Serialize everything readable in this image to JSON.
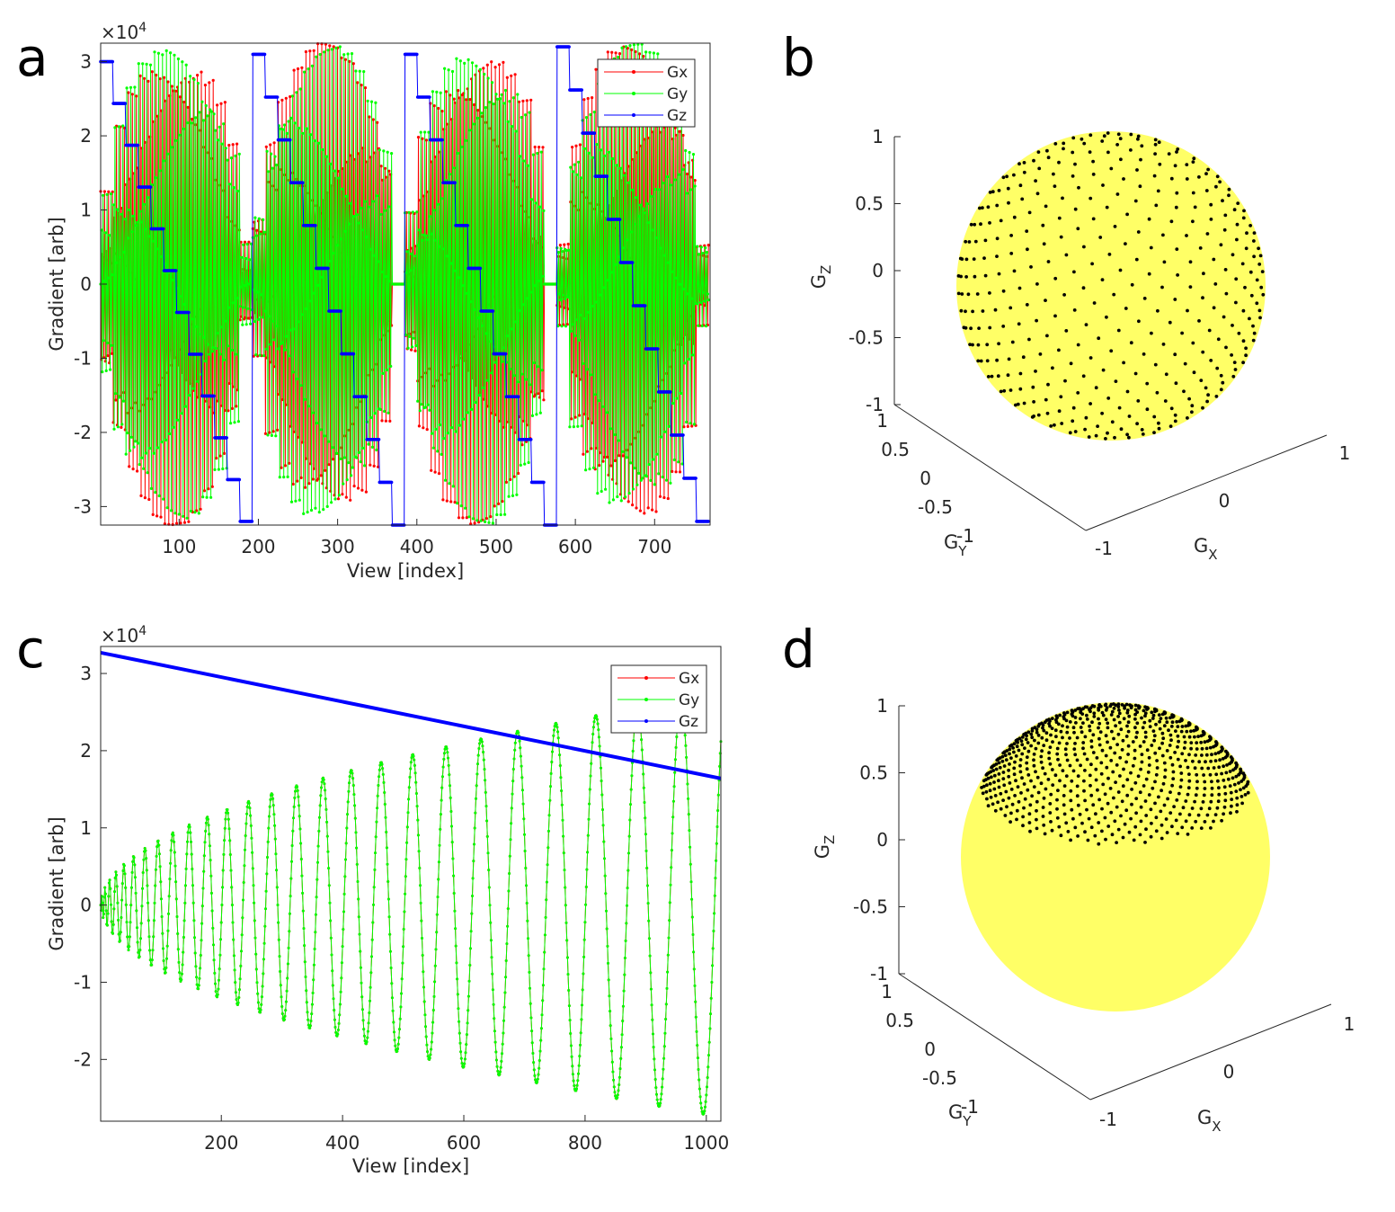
{
  "panel_letters": [
    "a",
    "b",
    "c",
    "d"
  ],
  "chart_data": [
    {
      "panel": "a",
      "type": "line",
      "xlabel": "View [index]",
      "ylabel": "Gradient [arb]",
      "exponent_label": "×10",
      "exponent": "4",
      "xlim": [
        1,
        770
      ],
      "ylim": [
        -3.25,
        3.25
      ],
      "xticks": [
        100,
        200,
        300,
        400,
        500,
        600,
        700
      ],
      "yticks": [
        -3,
        -2,
        -1,
        0,
        1,
        2,
        3
      ],
      "xtick_labels": [
        "100",
        "200",
        "300",
        "400",
        "500",
        "600",
        "700"
      ],
      "ytick_labels": [
        "-3",
        "-2",
        "-1",
        "0",
        "1",
        "2",
        "3"
      ],
      "series": [
        {
          "name": "Gx",
          "color": "#ff0000"
        },
        {
          "name": "Gy",
          "color": "#00ff00"
        },
        {
          "name": "Gz",
          "color": "#0000ff"
        }
      ],
      "interleaves": 4,
      "views_per_interleave": 192,
      "gz_levels_per_interleave": 12,
      "gz_start": [
        3.0,
        3.1,
        3.1,
        3.2
      ],
      "gz_end": [
        -3.2,
        -3.25,
        -3.25,
        -3.2
      ],
      "amplitude_max": 3.25
    },
    {
      "panel": "b",
      "type": "scatter3d",
      "xlabel": "G",
      "xlabel_sub": "X",
      "ylabel": "G",
      "ylabel_sub": "Y",
      "zlabel": "G",
      "zlabel_sub": "Z",
      "zticks": [
        "1",
        "0.5",
        "0",
        "-0.5",
        "-1"
      ],
      "yticks": [
        "1",
        "0.5",
        "0",
        "-0.5",
        "-1"
      ],
      "xticks": [
        "-1",
        "0",
        "1"
      ],
      "sphere_color": "#ffff66",
      "point_color": "#000000",
      "coverage": "full sphere",
      "points": 768
    },
    {
      "panel": "c",
      "type": "line",
      "xlabel": "View [index]",
      "ylabel": "Gradient [arb]",
      "exponent_label": "×10",
      "exponent": "4",
      "xlim": [
        1,
        1024
      ],
      "ylim": [
        -2.8,
        3.35
      ],
      "xticks": [
        200,
        400,
        600,
        800,
        1000
      ],
      "yticks": [
        -2,
        -1,
        0,
        1,
        2,
        3
      ],
      "xtick_labels": [
        "200",
        "400",
        "600",
        "800",
        "1000"
      ],
      "ytick_labels": [
        "-2",
        "-1",
        "0",
        "1",
        "2",
        "3"
      ],
      "series": [
        {
          "name": "Gx",
          "color": "#ff0000"
        },
        {
          "name": "Gy",
          "color": "#00ff00"
        },
        {
          "name": "Gz",
          "color": "#0000ff"
        }
      ],
      "gz_start": 3.27,
      "gz_end": 1.64,
      "turns": 23,
      "amplitude_max": 2.75
    },
    {
      "panel": "d",
      "type": "scatter3d",
      "xlabel": "G",
      "xlabel_sub": "X",
      "ylabel": "G",
      "ylabel_sub": "Y",
      "zlabel": "G",
      "zlabel_sub": "Z",
      "zticks": [
        "1",
        "0.5",
        "0",
        "-0.5",
        "-1"
      ],
      "yticks": [
        "1",
        "0.5",
        "0",
        "-0.5",
        "-1"
      ],
      "xticks": [
        "-1",
        "0",
        "1"
      ],
      "sphere_color": "#ffff66",
      "point_color": "#000000",
      "coverage": "polar cap",
      "points": 1024
    }
  ]
}
